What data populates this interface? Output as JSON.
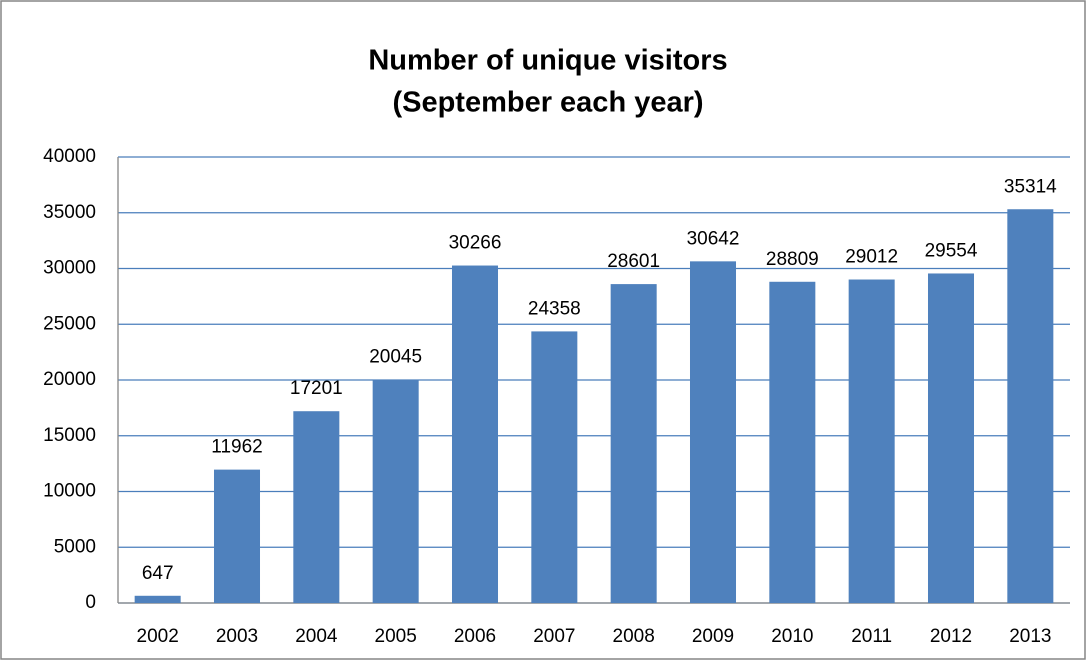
{
  "chart_data": {
    "type": "bar",
    "title": [
      "Number of unique visitors",
      "(September each year)"
    ],
    "categories": [
      "2002",
      "2003",
      "2004",
      "2005",
      "2006",
      "2007",
      "2008",
      "2009",
      "2010",
      "2011",
      "2012",
      "2013"
    ],
    "values": [
      647,
      11962,
      17201,
      20045,
      30266,
      24358,
      28601,
      30642,
      28809,
      29012,
      29554,
      35314
    ],
    "color": "#4f81bd",
    "ylim": [
      0,
      40000
    ],
    "yticks": [
      0,
      5000,
      10000,
      15000,
      20000,
      25000,
      30000,
      35000,
      40000
    ],
    "grid": true
  }
}
